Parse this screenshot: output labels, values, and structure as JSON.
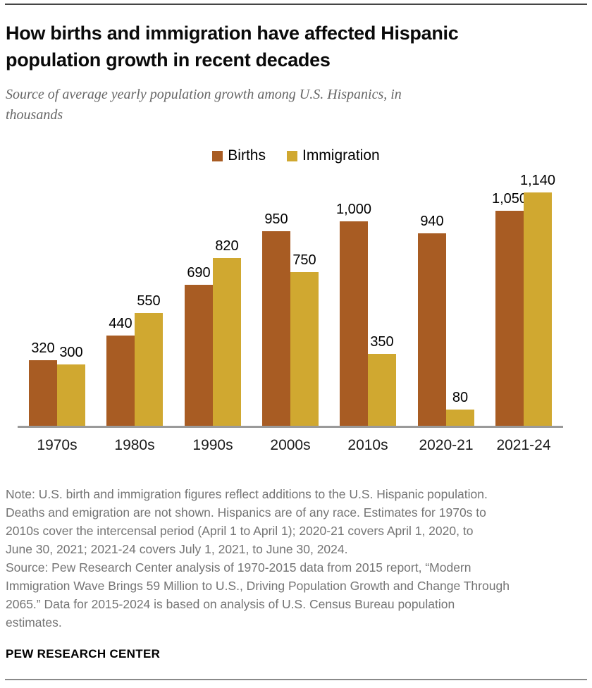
{
  "header": {
    "title_lines": [
      "How births and immigration have affected Hispanic",
      "population growth in recent decades"
    ],
    "subtitle_lines": [
      "Source of average yearly population growth among U.S. Hispanics, in",
      "thousands"
    ]
  },
  "legend": [
    {
      "label": "Births",
      "color": "#A85C23"
    },
    {
      "label": "Immigration",
      "color": "#D0A830"
    }
  ],
  "chart_data": {
    "type": "bar",
    "title": "How births and immigration have affected Hispanic population growth in recent decades",
    "subtitle": "Source of average yearly population growth among U.S. Hispanics, in thousands",
    "categories": [
      "1970s",
      "1980s",
      "1990s",
      "2000s",
      "2010s",
      "2020-21",
      "2021-24"
    ],
    "series": [
      {
        "name": "Births",
        "color": "#A85C23",
        "values": [
          320,
          440,
          690,
          950,
          1000,
          940,
          1050
        ]
      },
      {
        "name": "Immigration",
        "color": "#D0A830",
        "values": [
          300,
          550,
          820,
          750,
          350,
          80,
          1140
        ]
      }
    ],
    "ylim": [
      0,
      1140
    ],
    "grid": false,
    "legend_position": "top",
    "value_labels": "shown above each bar, thousands-separated",
    "axis_line_color": "#9a9a9a"
  },
  "notes": {
    "note_lines": [
      "Note: U.S. birth and immigration figures reflect additions to the U.S. Hispanic population.",
      "Deaths and emigration are not shown. Hispanics are of any race. Estimates for 1970s to",
      "2010s cover the intercensal period (April 1 to April 1); 2020-21 covers April 1, 2020, to",
      "June 30, 2021; 2021-24 covers July 1, 2021, to June 30, 2024."
    ],
    "source_lines": [
      "Source: Pew Research Center analysis of 1970-2015 data from 2015 report, “Modern",
      "Immigration Wave Brings 59 Million to U.S., Driving Population Growth and Change Through",
      "2065.” Data for 2015-2024 is based on analysis of U.S. Census Bureau population",
      "estimates."
    ]
  },
  "footer": {
    "brand": "PEW RESEARCH CENTER"
  }
}
